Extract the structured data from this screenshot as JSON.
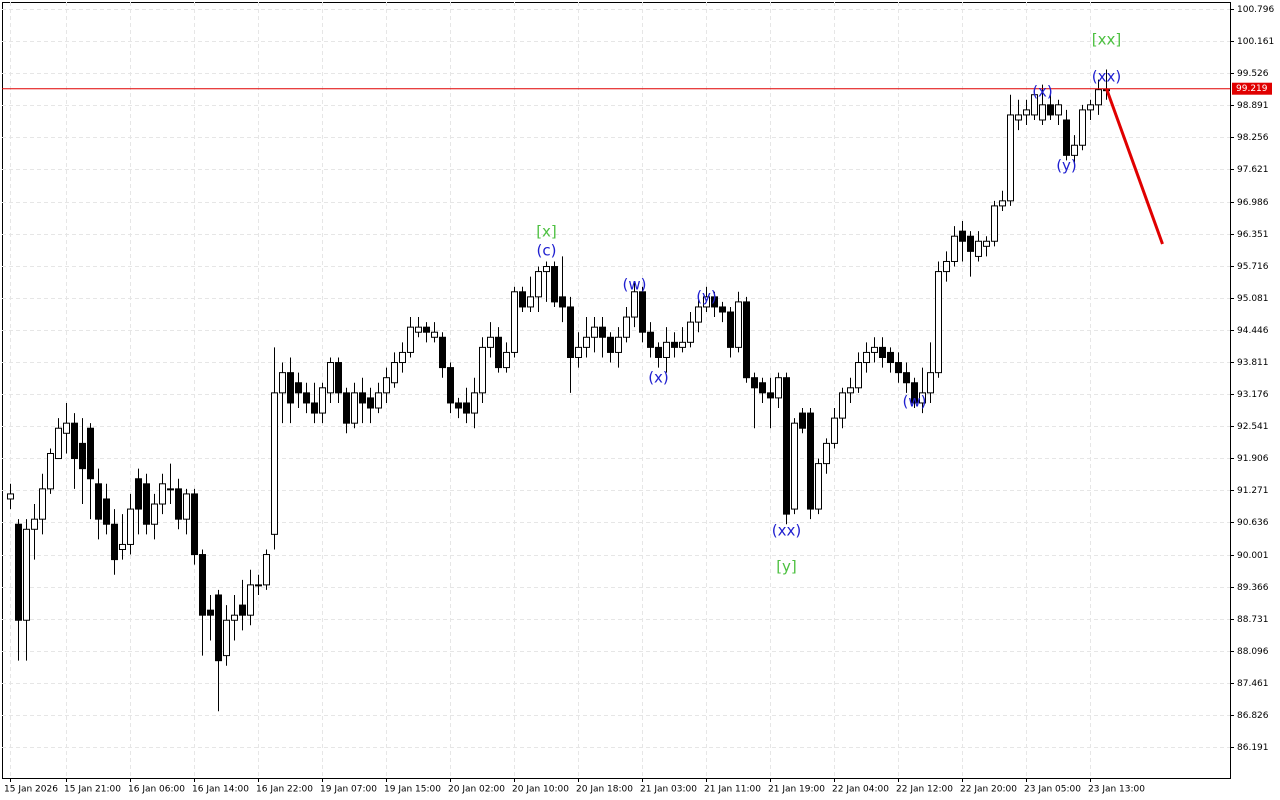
{
  "chart_data": {
    "type": "candlestick",
    "categories": [
      "15 Jan 2026",
      null,
      null,
      null,
      null,
      null,
      null,
      "15 Jan 21:00",
      null,
      null,
      null,
      null,
      null,
      null,
      null,
      "16 Jan 06:00",
      null,
      null,
      null,
      null,
      null,
      null,
      null,
      "16 Jan 14:00",
      null,
      null,
      null,
      null,
      null,
      null,
      null,
      "16 Jan 22:00",
      null,
      null,
      null,
      null,
      null,
      null,
      null,
      "19 Jan 07:00",
      null,
      null,
      null,
      null,
      null,
      null,
      null,
      "19 Jan 15:00",
      null,
      null,
      null,
      null,
      null,
      null,
      null,
      "20 Jan 02:00",
      null,
      null,
      null,
      null,
      null,
      null,
      null,
      "20 Jan 10:00",
      null,
      null,
      null,
      null,
      null,
      null,
      null,
      "20 Jan 18:00",
      null,
      null,
      null,
      null,
      null,
      null,
      null,
      "21 Jan 03:00",
      null,
      null,
      null,
      null,
      null,
      null,
      null,
      "21 Jan 11:00",
      null,
      null,
      null,
      null,
      null,
      null,
      null,
      "21 Jan 19:00",
      null,
      null,
      null,
      null,
      null,
      null,
      null,
      "22 Jan 04:00",
      null,
      null,
      null,
      null,
      null,
      null,
      null,
      "22 Jan 12:00",
      null,
      null,
      null,
      null,
      null,
      null,
      null,
      "22 Jan 20:00",
      null,
      null,
      null,
      null,
      null,
      null,
      null,
      "23 Jan 05:00",
      null,
      null,
      null,
      null,
      null,
      null,
      null,
      "23 Jan 13:00",
      null,
      null
    ],
    "open": [
      91.1,
      90.6,
      88.7,
      90.5,
      90.7,
      91.3,
      91.9,
      92.4,
      92.6,
      92.2,
      92.5,
      91.4,
      91.1,
      90.6,
      90.1,
      90.2,
      91.5,
      91.4,
      90.6,
      91.0,
      91.3,
      91.3,
      90.7,
      91.2,
      90.0,
      88.9,
      89.2,
      88.0,
      88.7,
      89.0,
      88.8,
      89.4,
      89.4,
      90.4,
      93.2,
      93.6,
      93.4,
      93.2,
      93.0,
      92.8,
      93.2,
      93.8,
      93.2,
      92.6,
      93.2,
      93.1,
      92.9,
      93.2,
      93.4,
      93.8,
      94.0,
      94.4,
      94.5,
      94.3,
      94.3,
      93.7,
      93.0,
      93.0,
      92.8,
      93.2,
      94.1,
      94.3,
      93.7,
      94.0,
      95.2,
      94.9,
      95.1,
      95.6,
      95.7,
      95.1,
      94.9,
      93.9,
      94.1,
      94.3,
      94.5,
      94.3,
      94.0,
      94.3,
      94.7,
      95.2,
      94.4,
      94.1,
      93.9,
      94.2,
      94.1,
      94.2,
      94.6,
      94.9,
      95.1,
      94.9,
      94.8,
      94.1,
      95.0,
      93.5,
      93.4,
      93.2,
      93.1,
      93.5,
      90.9,
      92.8,
      92.8,
      90.9,
      91.8,
      92.2,
      92.7,
      93.2,
      93.3,
      93.8,
      94.0,
      94.1,
      94.0,
      93.8,
      93.6,
      93.4,
      93.0,
      93.2,
      93.6,
      95.6,
      95.8,
      96.4,
      96.3,
      95.9,
      96.1,
      96.2,
      96.9,
      97.0,
      98.6,
      98.7,
      98.7,
      98.6,
      98.9,
      98.7,
      98.6,
      97.9,
      98.1,
      98.8,
      98.9,
      99.2
    ],
    "high": [
      91.4,
      90.7,
      90.7,
      91.0,
      91.6,
      92.1,
      92.7,
      93.0,
      92.8,
      92.7,
      92.6,
      91.7,
      91.4,
      90.9,
      90.8,
      91.2,
      91.7,
      91.6,
      91.2,
      91.6,
      91.8,
      91.5,
      91.3,
      91.3,
      90.1,
      89.2,
      89.3,
      89.0,
      89.2,
      89.5,
      89.7,
      89.6,
      90.1,
      94.1,
      93.8,
      93.9,
      93.6,
      93.4,
      93.4,
      93.4,
      93.9,
      93.9,
      93.3,
      93.4,
      93.5,
      93.3,
      93.4,
      93.7,
      94.0,
      94.2,
      94.7,
      94.7,
      94.6,
      94.6,
      94.4,
      93.8,
      93.1,
      93.3,
      93.5,
      94.3,
      94.6,
      94.5,
      94.2,
      95.3,
      95.3,
      95.5,
      95.7,
      95.8,
      95.8,
      95.9,
      95.1,
      94.4,
      94.7,
      94.7,
      94.7,
      94.4,
      94.5,
      94.9,
      95.4,
      95.3,
      94.6,
      94.2,
      94.5,
      94.4,
      94.5,
      94.8,
      95.1,
      95.3,
      95.2,
      95.0,
      94.9,
      95.2,
      95.1,
      93.6,
      93.5,
      93.5,
      93.6,
      93.6,
      92.7,
      92.9,
      92.9,
      91.9,
      92.3,
      92.9,
      93.3,
      93.5,
      94.0,
      94.2,
      94.3,
      94.3,
      94.1,
      94.0,
      93.8,
      93.5,
      93.7,
      94.2,
      95.8,
      96.0,
      96.5,
      96.6,
      96.4,
      96.4,
      96.3,
      97.0,
      97.2,
      99.1,
      99.0,
      99.0,
      99.2,
      99.3,
      99.1,
      99.0,
      98.8,
      98.3,
      98.9,
      99.0,
      99.4,
      99.6
    ],
    "low": [
      90.9,
      87.9,
      87.9,
      89.9,
      90.4,
      91.2,
      91.9,
      92.0,
      91.3,
      91.0,
      90.7,
      90.3,
      90.4,
      89.6,
      89.9,
      90.0,
      90.4,
      90.4,
      90.3,
      90.8,
      91.0,
      90.5,
      90.4,
      89.8,
      88.0,
      88.3,
      86.9,
      87.8,
      88.3,
      88.5,
      88.6,
      89.2,
      89.3,
      90.1,
      92.6,
      92.6,
      92.9,
      92.8,
      92.6,
      92.6,
      93.0,
      93.0,
      92.4,
      92.5,
      92.6,
      92.6,
      92.8,
      93.0,
      93.3,
      93.6,
      93.9,
      94.3,
      94.2,
      94.2,
      93.5,
      92.8,
      92.7,
      92.6,
      92.5,
      93.0,
      93.9,
      93.6,
      93.6,
      93.9,
      94.8,
      94.8,
      94.8,
      95.0,
      94.9,
      94.6,
      93.2,
      93.7,
      93.9,
      94.0,
      93.9,
      93.8,
      93.7,
      94.2,
      94.5,
      94.2,
      93.9,
      93.7,
      93.6,
      93.9,
      94.0,
      94.1,
      94.4,
      94.8,
      94.7,
      94.6,
      93.9,
      94.0,
      93.4,
      92.5,
      93.0,
      92.5,
      92.9,
      90.6,
      90.8,
      92.4,
      90.7,
      90.8,
      91.6,
      92.1,
      92.5,
      93.0,
      93.2,
      93.6,
      93.8,
      93.7,
      93.6,
      93.4,
      93.2,
      92.9,
      92.8,
      93.0,
      93.5,
      95.4,
      95.7,
      95.8,
      95.5,
      95.8,
      95.9,
      96.1,
      96.8,
      96.9,
      98.4,
      98.5,
      98.6,
      98.5,
      98.6,
      98.5,
      97.8,
      97.7,
      98.0,
      98.6,
      98.7,
      99.0
    ],
    "close": [
      91.2,
      88.7,
      90.5,
      90.7,
      91.3,
      92.0,
      92.5,
      92.6,
      91.9,
      91.7,
      91.5,
      90.7,
      90.6,
      89.9,
      90.2,
      90.9,
      90.9,
      90.6,
      91.0,
      91.4,
      91.3,
      90.7,
      91.2,
      90.0,
      88.8,
      88.8,
      87.9,
      88.7,
      88.8,
      88.8,
      89.4,
      89.4,
      90.0,
      93.2,
      93.6,
      93.0,
      93.2,
      93.0,
      92.8,
      93.3,
      93.8,
      93.2,
      92.6,
      93.2,
      93.0,
      92.9,
      93.2,
      93.5,
      93.8,
      94.0,
      94.5,
      94.5,
      94.4,
      94.4,
      93.7,
      93.0,
      92.9,
      92.8,
      93.2,
      94.1,
      94.3,
      93.7,
      94.0,
      95.2,
      94.9,
      95.1,
      95.6,
      95.7,
      95.0,
      94.9,
      93.9,
      94.1,
      94.3,
      94.5,
      94.3,
      94.0,
      94.3,
      94.7,
      95.2,
      94.4,
      94.1,
      93.9,
      94.2,
      94.1,
      94.2,
      94.6,
      94.9,
      95.1,
      94.9,
      94.8,
      94.1,
      95.0,
      93.5,
      93.3,
      93.2,
      93.1,
      93.5,
      90.8,
      92.6,
      92.5,
      90.9,
      91.8,
      92.2,
      92.7,
      93.2,
      93.3,
      93.8,
      94.0,
      94.1,
      93.9,
      93.8,
      93.6,
      93.4,
      93.0,
      93.2,
      93.6,
      95.6,
      95.8,
      96.3,
      96.2,
      96.0,
      96.2,
      96.2,
      96.9,
      97.0,
      98.7,
      98.7,
      98.8,
      99.1,
      98.9,
      98.7,
      98.9,
      97.9,
      98.1,
      98.8,
      98.9,
      99.2,
      99.2
    ],
    "up_color": "#ffffff",
    "down_color": "#000000",
    "wick_color": "#000000",
    "ylim": [
      85.578,
      100.935
    ],
    "yticks": [
      100.796,
      100.161,
      99.526,
      98.891,
      98.256,
      97.621,
      96.986,
      96.351,
      95.716,
      95.081,
      94.446,
      93.811,
      93.176,
      92.541,
      91.906,
      91.271,
      90.636,
      90.001,
      89.366,
      88.731,
      88.096,
      87.461,
      86.826,
      86.191
    ],
    "grid": true,
    "last_price": 99.219,
    "last_price_color": "#e00000",
    "forecast": {
      "color": "#e00000",
      "index": [
        137,
        144
      ],
      "price": [
        99.219,
        96.145
      ]
    },
    "annotations": [
      {
        "text": "[x]",
        "color": "#4cc040",
        "index": 67,
        "price": 96.38
      },
      {
        "text": "(c)",
        "color": "#2020d0",
        "index": 67,
        "price": 96.01
      },
      {
        "text": "(w)",
        "color": "#2020d0",
        "index": 78,
        "price": 95.33
      },
      {
        "text": "(x)",
        "color": "#2020d0",
        "index": 81,
        "price": 93.49
      },
      {
        "text": "(y)",
        "color": "#2020d0",
        "index": 87,
        "price": 95.1
      },
      {
        "text": "(xx)",
        "color": "#2020d0",
        "index": 97,
        "price": 90.47
      },
      {
        "text": "[y]",
        "color": "#4cc040",
        "index": 97,
        "price": 89.75
      },
      {
        "text": "(w)",
        "color": "#2020d0",
        "index": 113,
        "price": 93.02
      },
      {
        "text": "(x)",
        "color": "#2020d0",
        "index": 129,
        "price": 99.15
      },
      {
        "text": "(y)",
        "color": "#2020d0",
        "index": 132,
        "price": 97.69
      },
      {
        "text": "(xx)",
        "color": "#2020d0",
        "index": 137,
        "price": 99.45
      },
      {
        "text": "[xx]",
        "color": "#4cc040",
        "index": 137,
        "price": 100.18
      }
    ]
  }
}
